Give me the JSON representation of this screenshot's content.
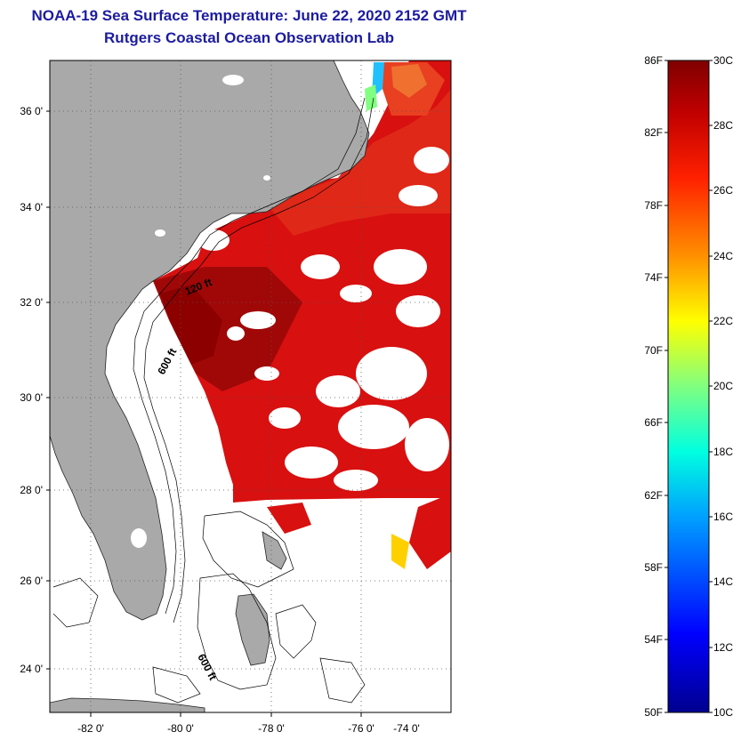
{
  "title": {
    "line1": "NOAA-19 Sea Surface Temperature:  June 22, 2020 2152 GMT",
    "line2": "Rutgers Coastal Ocean Observation Lab"
  },
  "map": {
    "lat_ticks": [
      "36 0'",
      "34 0'",
      "32 0'",
      "30 0'",
      "28 0'",
      "26 0'",
      "24 0'"
    ],
    "lon_ticks": [
      "-82 0'",
      "-80 0'",
      "-78 0'",
      "-76 0'",
      "-74 0'"
    ],
    "isobaths": [
      "120 ft",
      "600 ft",
      "600 ft"
    ],
    "colors": {
      "land": "#a9a9a9",
      "no_data": "#ffffff",
      "warm": "#d81010",
      "hot": "#8c0000"
    }
  },
  "colorbar": {
    "fahrenheit": [
      "86F",
      "82F",
      "78F",
      "74F",
      "70F",
      "66F",
      "62F",
      "58F",
      "54F",
      "50F"
    ],
    "celsius": [
      "30C",
      "28C",
      "26C",
      "24C",
      "22C",
      "20C",
      "18C",
      "16C",
      "14C",
      "12C",
      "10C"
    ]
  }
}
